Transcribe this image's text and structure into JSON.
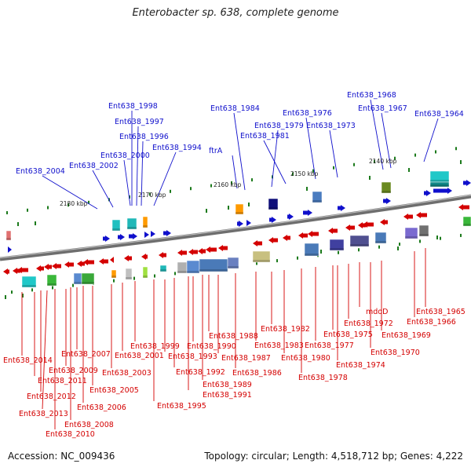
{
  "title": "Enterobacter sp. 638, complete genome",
  "accession": "Accession: NC_009436",
  "topology": "Topology: circular; Length: 4,518,712 bp; Genes: 4,222",
  "colors": {
    "forward": "#1010cc",
    "reverse": "#d40000",
    "backbone": "#7a7a7a",
    "tick": "#1c7a1c"
  },
  "ticks": [
    "2180 kbp",
    "2170 kbp",
    "2160 kbp",
    "2150 kbp",
    "2140 kbp"
  ],
  "top_labels": [
    "Ent638_1998",
    "Ent638_1997",
    "Ent638_1996",
    "Ent638_2000",
    "Ent638_1994",
    "Ent638_2002",
    "Ent638_2004",
    "Ent638_1984",
    "ftrA",
    "Ent638_1979",
    "Ent638_1981",
    "Ent638_1976",
    "Ent638_1973",
    "Ent638_1968",
    "Ent638_1967",
    "Ent638_1964"
  ],
  "bottom_labels": [
    "Ent638_2014",
    "Ent638_2011",
    "Ent638_2012",
    "Ent638_2013",
    "Ent638_2010",
    "Ent638_2009",
    "Ent638_2008",
    "Ent638_2007",
    "Ent638_2006",
    "Ent638_2005",
    "Ent638_2003",
    "Ent638_2001",
    "Ent638_1999",
    "Ent638_1995",
    "Ent638_1993",
    "Ent638_1992",
    "Ent638_1991",
    "Ent638_1990",
    "Ent638_1989",
    "Ent638_1988",
    "Ent638_1987",
    "Ent638_1986",
    "Ent638_1983",
    "Ent638_1982",
    "Ent638_1980",
    "Ent638_1978",
    "Ent638_1977",
    "Ent638_1975",
    "Ent638_1974",
    "Ent638_1972",
    "mdoD",
    "Ent638_1970",
    "Ent638_1969",
    "Ent638_1966",
    "Ent638_1965"
  ]
}
